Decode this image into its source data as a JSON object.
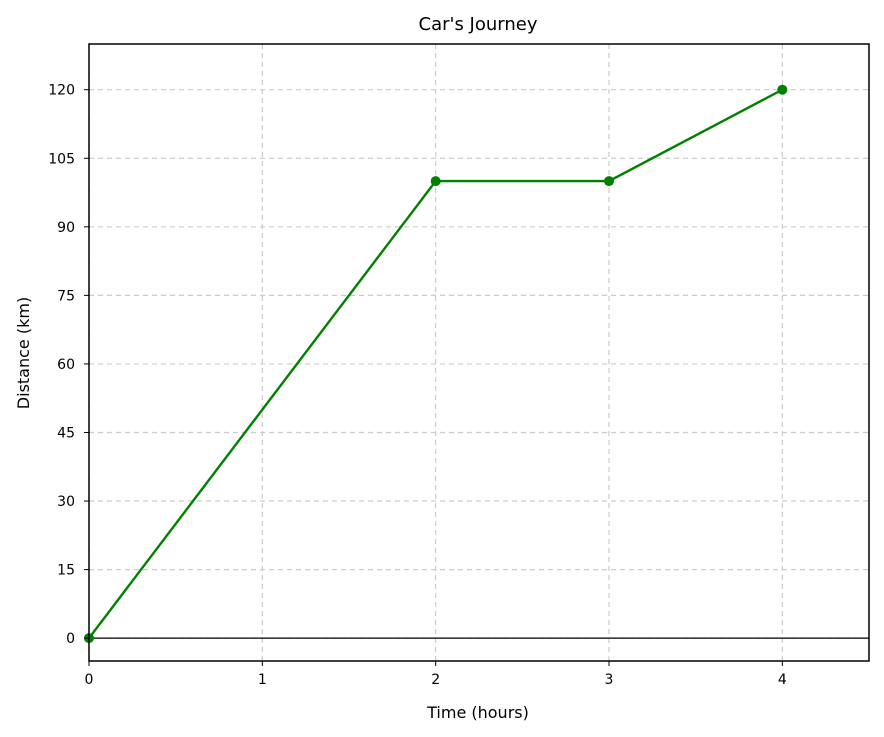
{
  "chart_data": {
    "type": "line",
    "title": "Car's Journey",
    "xlabel": "Time (hours)",
    "ylabel": "Distance (km)",
    "xlim": [
      0,
      4.5
    ],
    "ylim": [
      -5,
      130
    ],
    "xticks": [
      0,
      1,
      2,
      3,
      4
    ],
    "yticks": [
      0,
      15,
      30,
      45,
      60,
      75,
      90,
      105,
      120
    ],
    "grid": true,
    "grid_style": "dashed",
    "zero_line": true,
    "series": [
      {
        "x": [
          0,
          2,
          3,
          4
        ],
        "y": [
          0,
          100,
          100,
          120
        ],
        "color": "#008000",
        "marker": "circle"
      }
    ]
  }
}
